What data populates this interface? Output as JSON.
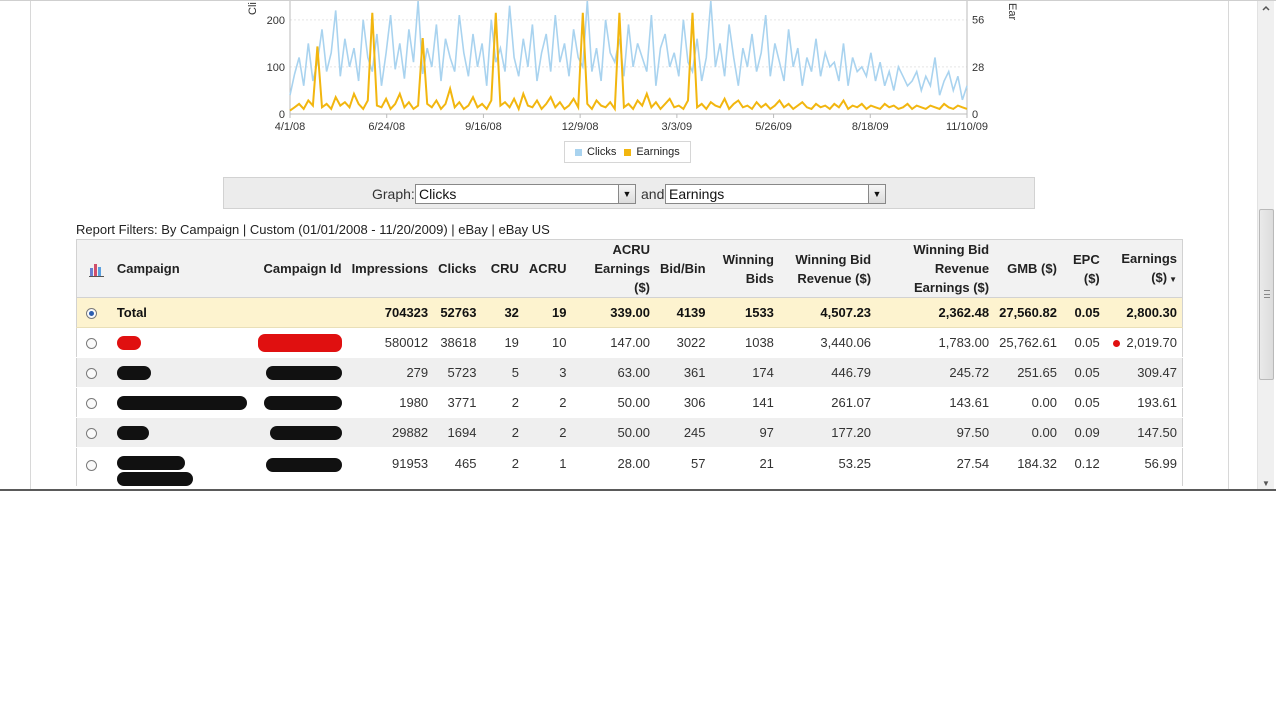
{
  "chart_data": {
    "type": "line",
    "x_ticks": [
      "4/1/08",
      "6/24/08",
      "9/16/08",
      "12/9/08",
      "3/3/09",
      "5/26/09",
      "8/18/09",
      "11/10/09"
    ],
    "y_left_ticks": [
      "200",
      "100",
      "0"
    ],
    "y_right_ticks": [
      "56",
      "28",
      "0"
    ],
    "ylim_left": [
      0,
      240
    ],
    "ylim_right": [
      0,
      67
    ],
    "ylabel_left": "Cli",
    "ylabel_right": "Ear",
    "grid": true,
    "legend_position": "bottom",
    "series": [
      {
        "name": "Clicks",
        "color": "#a9d3ef",
        "axis": "left",
        "values": [
          40,
          85,
          120,
          60,
          150,
          70,
          110,
          180,
          90,
          130,
          220,
          80,
          160,
          100,
          140,
          70,
          200,
          120,
          90,
          170,
          60,
          130,
          210,
          95,
          150,
          75,
          180,
          110,
          240,
          85,
          140,
          100,
          190,
          70,
          160,
          120,
          90,
          210,
          130,
          80,
          170,
          100,
          150,
          60,
          200,
          110,
          140,
          90,
          230,
          120,
          80,
          160,
          100,
          190,
          70,
          130,
          170,
          90,
          210,
          110,
          150,
          80,
          180,
          120,
          100,
          240,
          90,
          140,
          70,
          200,
          130,
          110,
          160,
          80,
          190,
          100,
          150,
          120,
          90,
          210,
          60,
          140,
          170,
          100,
          130,
          80,
          200,
          110,
          90,
          160,
          70,
          120,
          240,
          100,
          150,
          80,
          190,
          120,
          60,
          140,
          100,
          170,
          90,
          130,
          210,
          80,
          150,
          110,
          70,
          180,
          100,
          140,
          60,
          120,
          90,
          160,
          80,
          130,
          100,
          110,
          70,
          150,
          60,
          120,
          90,
          100,
          80,
          130,
          70,
          110,
          60,
          90,
          50,
          100,
          80,
          60,
          70,
          90,
          50,
          80,
          60,
          120,
          40,
          70,
          90,
          50,
          80,
          30,
          60
        ]
      },
      {
        "name": "Earnings",
        "color": "#f2b60f",
        "axis": "right",
        "values": [
          2,
          4,
          6,
          3,
          8,
          5,
          40,
          4,
          6,
          3,
          10,
          5,
          7,
          4,
          12,
          6,
          3,
          8,
          60,
          5,
          4,
          9,
          3,
          6,
          12,
          4,
          7,
          3,
          5,
          45,
          6,
          4,
          8,
          3,
          6,
          15,
          4,
          7,
          3,
          5,
          10,
          4,
          6,
          3,
          8,
          60,
          5,
          7,
          4,
          9,
          3,
          12,
          5,
          4,
          8,
          3,
          6,
          10,
          4,
          7,
          3,
          5,
          9,
          4,
          60,
          6,
          3,
          8,
          5,
          4,
          7,
          3,
          60,
          4,
          6,
          3,
          8,
          5,
          12,
          4,
          7,
          3,
          6,
          9,
          4,
          5,
          3,
          8,
          60,
          4,
          6,
          3,
          7,
          5,
          4,
          9,
          3,
          6,
          8,
          4,
          5,
          3,
          7,
          4,
          6,
          3,
          5,
          8,
          4,
          6,
          3,
          5,
          7,
          4,
          3,
          6,
          4,
          5,
          3,
          6,
          4,
          8,
          3,
          5,
          4,
          6,
          3,
          5,
          4,
          3,
          6,
          4,
          5,
          3,
          4,
          6,
          3,
          5,
          4,
          3,
          5,
          4,
          3,
          6,
          4,
          3,
          5,
          4,
          3
        ]
      }
    ]
  },
  "legend": {
    "items": [
      {
        "label": "Clicks",
        "color": "#a9d3ef"
      },
      {
        "label": "Earnings",
        "color": "#f2b60f"
      }
    ]
  },
  "graph": {
    "label": "Graph:",
    "and_label": "and",
    "first_select": "Clicks",
    "second_select": "Earnings"
  },
  "filters": {
    "text": "Report Filters: By Campaign | Custom (01/01/2008 - 11/20/2009) | eBay | eBay US"
  },
  "table": {
    "header_icon": "bar-chart-icon",
    "headers": {
      "campaign": "Campaign",
      "campaign_id": "Campaign Id",
      "impressions": "Impressions",
      "clicks": "Clicks",
      "cru": "CRU",
      "acru": "ACRU",
      "acru_earnings_1": "ACRU",
      "acru_earnings_2": "Earnings ($)",
      "bid_bin": "Bid/Bin",
      "winning_bids_1": "Winning",
      "winning_bids_2": "Bids",
      "wbr_1": "Winning Bid",
      "wbr_2": "Revenue ($)",
      "wbre_1": "Winning Bid Revenue",
      "wbre_2": "Earnings ($)",
      "gmb": "GMB ($)",
      "epc_1": "EPC",
      "epc_2": "($)",
      "earnings_1": "Earnings",
      "earnings_2": "($)",
      "sort_indicator": "▼"
    },
    "total": {
      "campaign": "Total",
      "impressions": "704323",
      "clicks": "52763",
      "cru": "32",
      "acru": "19",
      "acru_earnings": "339.00",
      "bid_bin": "4139",
      "winning_bids": "1533",
      "wbr": "4,507.23",
      "wbre": "2,362.48",
      "gmb": "27,560.82",
      "epc": "0.05",
      "earnings": "2,800.30"
    },
    "rows": [
      {
        "impressions": "580012",
        "clicks": "38618",
        "cru": "19",
        "acru": "10",
        "acru_earnings": "147.00",
        "bid_bin": "3022",
        "winning_bids": "1038",
        "wbr": "3,440.06",
        "wbre": "1,783.00",
        "gmb": "25,762.61",
        "epc": "0.05",
        "earnings": "2,019.70"
      },
      {
        "impressions": "279",
        "clicks": "5723",
        "cru": "5",
        "acru": "3",
        "acru_earnings": "63.00",
        "bid_bin": "361",
        "winning_bids": "174",
        "wbr": "446.79",
        "wbre": "245.72",
        "gmb": "251.65",
        "epc": "0.05",
        "earnings": "309.47"
      },
      {
        "impressions": "1980",
        "clicks": "3771",
        "cru": "2",
        "acru": "2",
        "acru_earnings": "50.00",
        "bid_bin": "306",
        "winning_bids": "141",
        "wbr": "261.07",
        "wbre": "143.61",
        "gmb": "0.00",
        "epc": "0.05",
        "earnings": "193.61"
      },
      {
        "impressions": "29882",
        "clicks": "1694",
        "cru": "2",
        "acru": "2",
        "acru_earnings": "50.00",
        "bid_bin": "245",
        "winning_bids": "97",
        "wbr": "177.20",
        "wbre": "97.50",
        "gmb": "0.00",
        "epc": "0.09",
        "earnings": "147.50"
      },
      {
        "impressions": "91953",
        "clicks": "465",
        "cru": "2",
        "acru": "1",
        "acru_earnings": "28.00",
        "bid_bin": "57",
        "winning_bids": "21",
        "wbr": "53.25",
        "wbre": "27.54",
        "gmb": "184.32",
        "epc": "0.12",
        "earnings": "56.99"
      }
    ]
  }
}
